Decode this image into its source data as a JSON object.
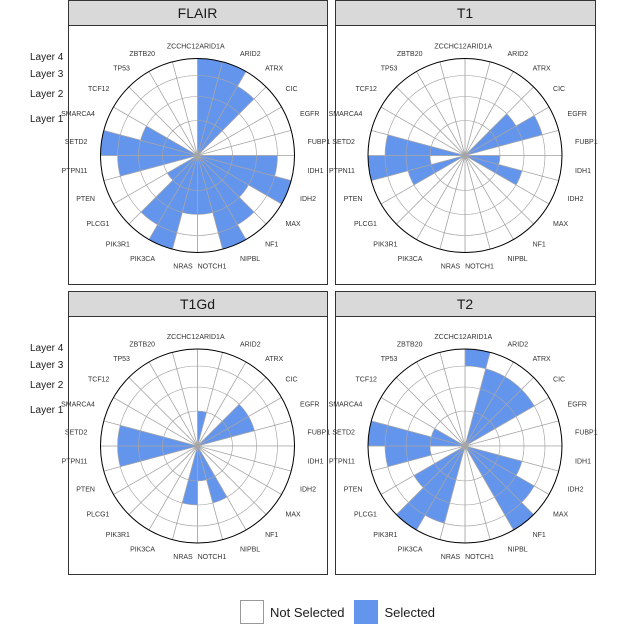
{
  "genes": [
    "ARID1A",
    "ARID2",
    "ATRX",
    "CIC",
    "EGFR",
    "FUBP1",
    "IDH1",
    "IDH2",
    "MAX",
    "NF1",
    "NIPBL",
    "NOTCH1",
    "NRAS",
    "PIK3CA",
    "PIK3R1",
    "PLCG1",
    "PTEN",
    "PTPN11",
    "SETD2",
    "SMARCA4",
    "TCF12",
    "TP53",
    "ZBTB20",
    "ZCCHC12"
  ],
  "layer_labels": [
    "Layer 4",
    "Layer 3",
    "Layer 2",
    "Layer 1"
  ],
  "legend": {
    "not_selected": "Not Selected",
    "selected": "Selected"
  },
  "colors": {
    "selected": "#6495ED",
    "not_selected": "#FFFFFF",
    "grid": "#A6A6A6",
    "outline": "#000000",
    "header_bg": "#D9D9D9",
    "label": "#333333"
  },
  "chart_data": [
    {
      "type": "polar-bar",
      "title": "FLAIR",
      "value_levels": [
        "Not Selected",
        "Selected"
      ],
      "selected_layers": {
        "ARID1A": [
          1,
          2,
          3,
          4
        ],
        "ARID2": [
          1,
          2,
          3,
          4
        ],
        "ATRX": [
          1,
          2,
          3
        ],
        "IDH1": [
          1,
          2,
          3
        ],
        "IDH2": [
          1,
          2,
          3,
          4
        ],
        "MAX": [
          1,
          2
        ],
        "NF1": [
          1,
          2,
          3
        ],
        "NIPBL": [
          1,
          2,
          3,
          4
        ],
        "NOTCH1": [
          1,
          2
        ],
        "NRAS": [
          1,
          2
        ],
        "PIK3CA": [
          1,
          2,
          3,
          4
        ],
        "PIK3R1": [
          1,
          2,
          3
        ],
        "PLCG1": [
          1
        ],
        "PTPN11": [
          1,
          2,
          3
        ],
        "SETD2": [
          1,
          2,
          3,
          4
        ],
        "SMARCA4": [
          1,
          2
        ]
      }
    },
    {
      "type": "polar-bar",
      "title": "T1",
      "value_levels": [
        "Not Selected",
        "Selected"
      ],
      "selected_layers": {
        "CIC": [
          1,
          2
        ],
        "EGFR": [
          1,
          2,
          3
        ],
        "IDH1": [
          1
        ],
        "IDH2": [
          1,
          2
        ],
        "PTPN11": [
          2,
          3,
          4
        ],
        "PTEN": [
          1,
          2
        ],
        "SETD2": [
          1,
          2,
          3
        ]
      }
    },
    {
      "type": "polar-bar",
      "title": "T1Gd",
      "value_levels": [
        "Not Selected",
        "Selected"
      ],
      "selected_layers": {
        "ARID1A": [
          1
        ],
        "CIC": [
          1,
          2
        ],
        "EGFR": [
          1,
          2
        ],
        "NIPBL": [
          1,
          2
        ],
        "NOTCH1": [
          1
        ],
        "NRAS": [
          1,
          2
        ],
        "PTPN11": [
          1,
          2,
          3
        ],
        "SETD2": [
          1,
          2,
          3
        ]
      }
    },
    {
      "type": "polar-bar",
      "title": "T2",
      "value_levels": [
        "Not Selected",
        "Selected"
      ],
      "selected_layers": {
        "ARID1A": [
          4
        ],
        "ARID2": [
          1,
          2,
          3
        ],
        "ATRX": [
          1,
          2,
          3
        ],
        "CIC": [
          1,
          2,
          3
        ],
        "IDH2": [
          1,
          2
        ],
        "MAX": [
          1,
          2,
          3
        ],
        "NF1": [
          1,
          2,
          3,
          4
        ],
        "PIK3CA": [
          1,
          2,
          3
        ],
        "PIK3R1": [
          1,
          2,
          3,
          4
        ],
        "PLCG1": [
          1,
          2
        ],
        "PTPN11": [
          2,
          3
        ],
        "SETD2": [
          1,
          2,
          3,
          4
        ],
        "SMARCA4": [
          1
        ]
      }
    }
  ]
}
